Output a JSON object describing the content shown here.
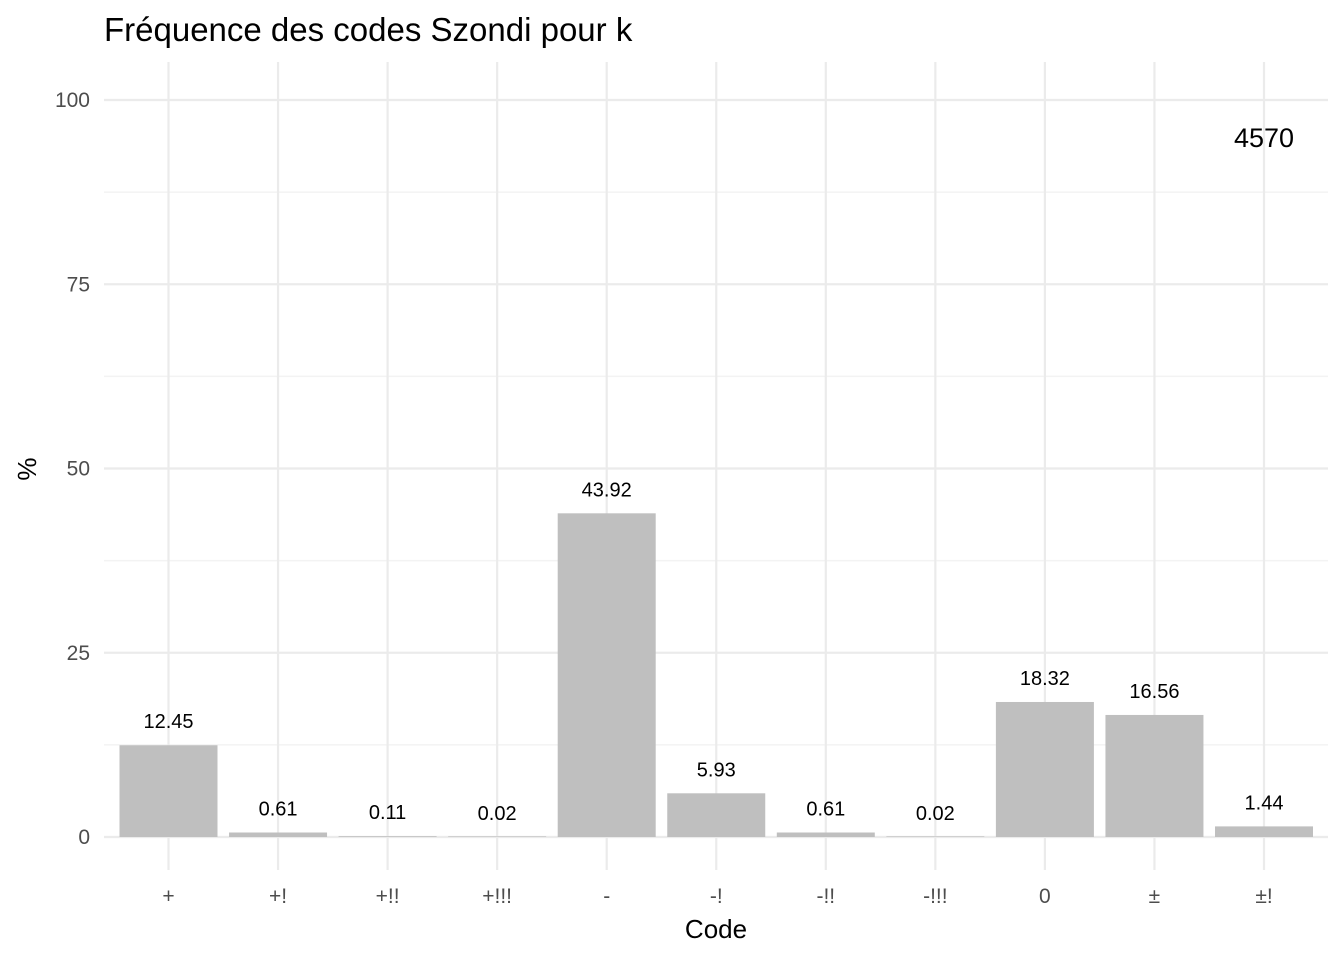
{
  "chart_data": {
    "type": "bar",
    "title": "Fréquence des codes Szondi pour k",
    "xlabel": "Code",
    "ylabel": "%",
    "categories": [
      "+",
      "+!",
      "+!!",
      "+!!!",
      "-",
      "-!",
      "-!!",
      "-!!!",
      "0",
      "±",
      "±!"
    ],
    "values": [
      12.45,
      0.61,
      0.11,
      0.02,
      43.92,
      5.93,
      0.61,
      0.02,
      18.32,
      16.56,
      1.44
    ],
    "data_labels": [
      "12.45",
      "0.61",
      "0.11",
      "0.02",
      "43.92",
      "5.93",
      "0.61",
      "0.02",
      "18.32",
      "16.56",
      "1.44"
    ],
    "ylim": [
      0,
      100
    ],
    "yticks": [
      0,
      25,
      50,
      75,
      100
    ],
    "ytick_labels": [
      "0",
      "25",
      "50",
      "75",
      "100"
    ],
    "annotation": "4570",
    "annotation_at": {
      "category": "±!",
      "y": 95
    },
    "grid": true,
    "legend": "none",
    "bar_color": "#bfbfbf"
  }
}
